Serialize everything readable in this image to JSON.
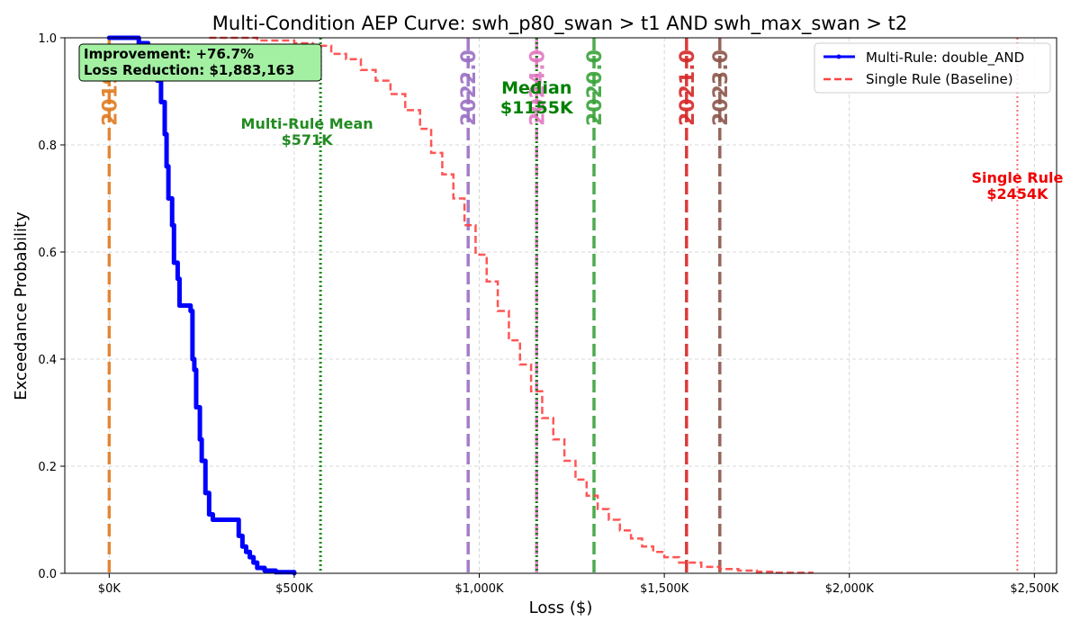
{
  "chart_data": {
    "type": "line",
    "title": "Multi-Condition AEP Curve: swh_p80_swan > t1 AND swh_max_swan > t2",
    "xlabel": "Loss ($)",
    "ylabel": "Exceedance Probability",
    "xlim": [
      -120000,
      2560000
    ],
    "ylim": [
      0,
      1
    ],
    "x_ticks": [
      0,
      500000,
      1000000,
      1500000,
      2000000,
      2500000
    ],
    "x_tick_labels": [
      "$0K",
      "$500K",
      "$1,000K",
      "$1,500K",
      "$2,000K",
      "$2,500K"
    ],
    "y_ticks": [
      0,
      0.2,
      0.4,
      0.6,
      0.8,
      1.0
    ],
    "y_tick_labels": [
      "0.0",
      "0.2",
      "0.4",
      "0.6",
      "0.8",
      "1.0"
    ],
    "grid": true,
    "legend_position": "top-right",
    "series": [
      {
        "name": "Multi-Rule: double_AND",
        "color": "#0000ff",
        "style": "solid",
        "x": [
          0,
          50000,
          80000,
          105000,
          120000,
          130000,
          140000,
          150000,
          155000,
          160000,
          170000,
          175000,
          185000,
          190000,
          200000,
          220000,
          225000,
          230000,
          235000,
          245000,
          250000,
          260000,
          270000,
          280000,
          300000,
          345000,
          350000,
          360000,
          370000,
          380000,
          390000,
          400000,
          420000,
          450000,
          500000
        ],
        "y": [
          1.0,
          1.0,
          0.99,
          0.97,
          0.95,
          0.92,
          0.88,
          0.82,
          0.76,
          0.7,
          0.65,
          0.58,
          0.55,
          0.5,
          0.5,
          0.49,
          0.4,
          0.38,
          0.31,
          0.25,
          0.21,
          0.15,
          0.11,
          0.1,
          0.1,
          0.1,
          0.07,
          0.05,
          0.04,
          0.03,
          0.02,
          0.01,
          0.005,
          0.002,
          0.0
        ]
      },
      {
        "name": "Single Rule (Baseline)",
        "color": "#ff4444",
        "style": "dashed",
        "x": [
          270000,
          400000,
          500000,
          550000,
          600000,
          640000,
          680000,
          720000,
          760000,
          800000,
          840000,
          870000,
          900000,
          930000,
          960000,
          990000,
          1020000,
          1050000,
          1080000,
          1110000,
          1140000,
          1170000,
          1200000,
          1230000,
          1260000,
          1290000,
          1320000,
          1350000,
          1380000,
          1410000,
          1440000,
          1470000,
          1500000,
          1540000,
          1600000,
          1650000,
          1700000,
          1750000,
          1800000,
          1900000
        ],
        "y": [
          1.0,
          0.995,
          0.99,
          0.985,
          0.97,
          0.96,
          0.94,
          0.92,
          0.895,
          0.865,
          0.83,
          0.785,
          0.745,
          0.7,
          0.65,
          0.595,
          0.545,
          0.49,
          0.435,
          0.39,
          0.34,
          0.29,
          0.25,
          0.21,
          0.175,
          0.145,
          0.12,
          0.1,
          0.08,
          0.065,
          0.05,
          0.04,
          0.03,
          0.02,
          0.012,
          0.008,
          0.005,
          0.003,
          0.001,
          0.0
        ]
      }
    ],
    "vertical_lines": [
      {
        "label": "2019.0",
        "display": "2019",
        "x": 0,
        "color": "#e07b20",
        "style": "dashed"
      },
      {
        "label": "2022.0",
        "display": "2022.0",
        "x": 970000,
        "color": "#9b6fc4",
        "style": "dashed"
      },
      {
        "label": "2024.0",
        "display": "2024.0",
        "x": 1155000,
        "color": "#e377c2",
        "style": "dashed"
      },
      {
        "label": "2020.0",
        "display": "2020.0",
        "x": 1310000,
        "color": "#3aa33a",
        "style": "dashed"
      },
      {
        "label": "2021.0",
        "display": "2021.0",
        "x": 1560000,
        "color": "#d62728",
        "style": "dashed"
      },
      {
        "label": "2023.0",
        "display": "2023.0",
        "x": 1650000,
        "color": "#8c564b",
        "style": "dashed"
      }
    ],
    "reference_lines": [
      {
        "name": "Multi-Rule Mean",
        "value_label": "$571K",
        "x": 571000,
        "color": "#1a8a1a"
      },
      {
        "name": "Median",
        "value_label": "$1155K",
        "x": 1155000,
        "color": "#117a11"
      },
      {
        "name": "Single Rule",
        "value_label": "$2454K",
        "x": 2454000,
        "color": "#ff4444"
      }
    ],
    "annotation_box": {
      "line1": "Improvement: +76.7%",
      "line2": "Loss Reduction: $1,883,163",
      "background": "#a3f0a3"
    }
  }
}
